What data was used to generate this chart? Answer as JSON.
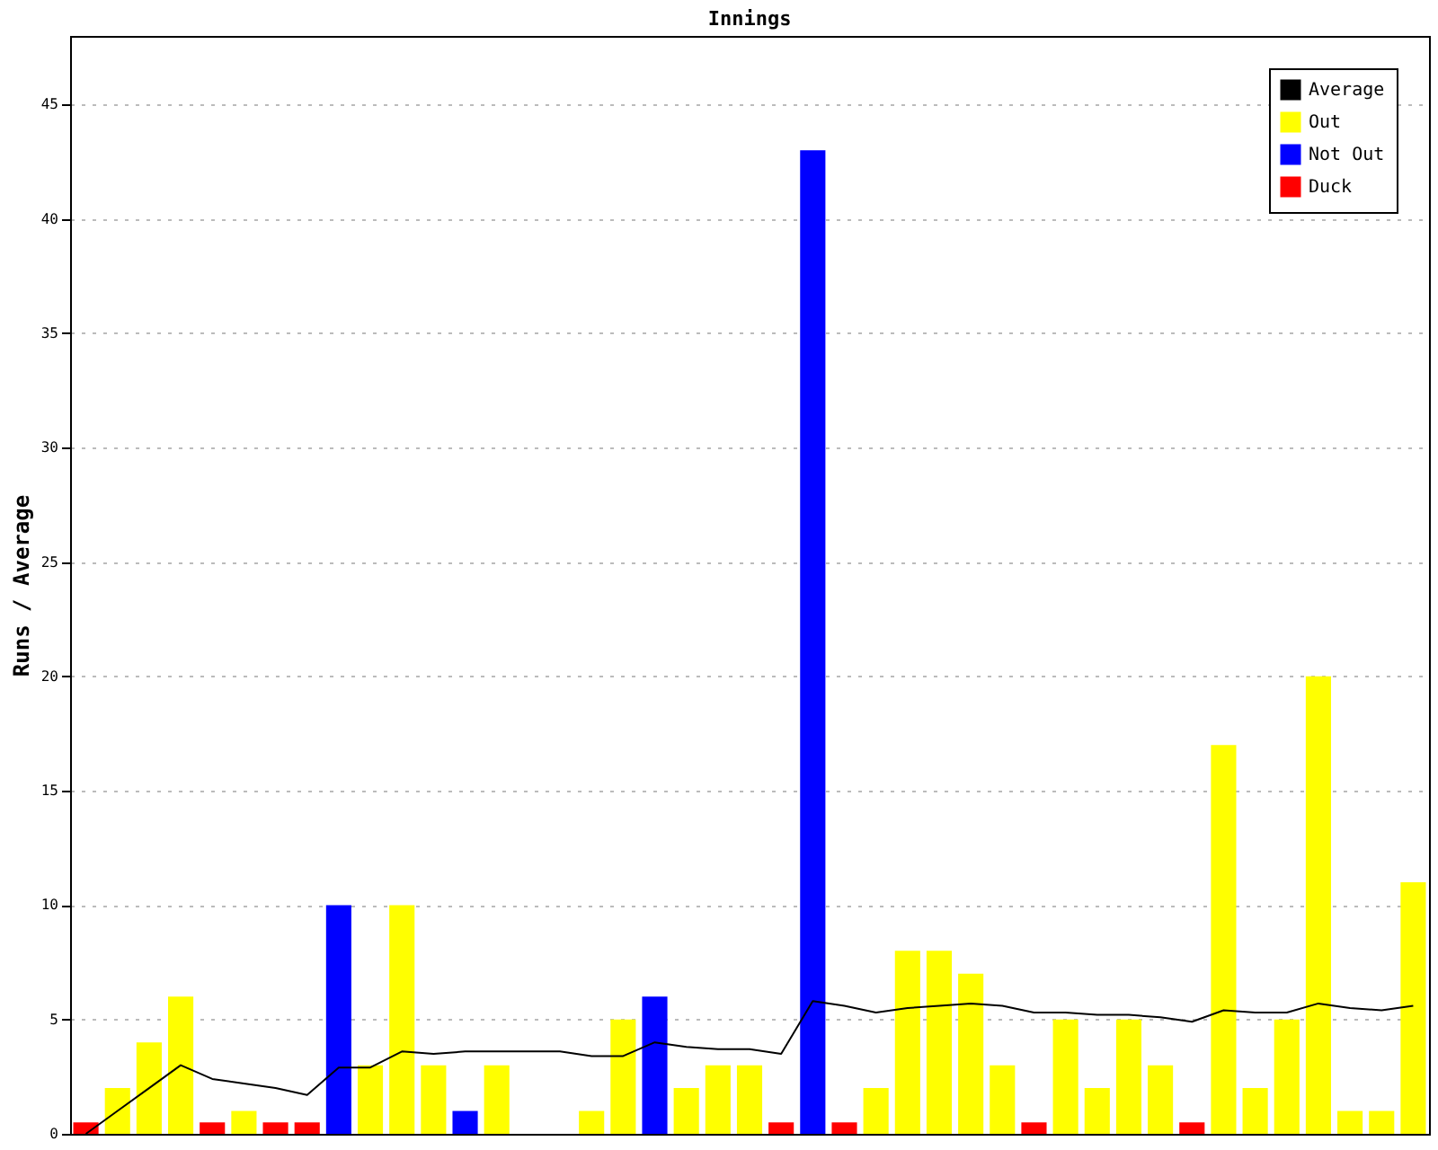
{
  "chart_data": {
    "type": "bar",
    "title": "Innings",
    "ylabel": "Runs / Average",
    "categories": [
      null,
      null,
      null,
      null,
      null,
      null,
      null,
      null,
      null,
      null,
      null,
      null,
      null,
      null,
      null,
      null,
      null,
      null,
      null,
      null,
      null,
      null,
      null,
      null,
      null,
      null,
      null,
      null,
      null,
      null,
      null,
      null,
      null,
      null,
      null,
      null,
      null,
      null,
      null,
      null,
      null,
      null,
      null
    ],
    "series": [
      {
        "name": "Average",
        "type": "line",
        "color": "#000000",
        "values": [
          0,
          1.0,
          2.0,
          3.0,
          2.4,
          2.2,
          2.0,
          1.7,
          2.9,
          2.9,
          3.6,
          3.5,
          3.6,
          3.6,
          3.6,
          3.6,
          3.4,
          3.4,
          4.0,
          3.8,
          3.7,
          3.7,
          3.5,
          5.8,
          5.6,
          5.3,
          5.5,
          5.6,
          5.7,
          5.6,
          5.3,
          5.3,
          5.2,
          5.2,
          5.1,
          4.9,
          5.4,
          5.3,
          5.3,
          5.7,
          5.5,
          5.4,
          5.6
        ]
      },
      {
        "name": "Out",
        "color": "#ffff00",
        "values": [
          null,
          2,
          4,
          6,
          null,
          1,
          null,
          null,
          null,
          3,
          10,
          3,
          null,
          3,
          null,
          null,
          1,
          5,
          null,
          2,
          3,
          3,
          null,
          null,
          null,
          2,
          8,
          8,
          7,
          3,
          null,
          5,
          2,
          5,
          3,
          null,
          17,
          2,
          5,
          20,
          1,
          1,
          11
        ]
      },
      {
        "name": "Not Out",
        "color": "#0000ff",
        "values": [
          null,
          null,
          null,
          null,
          null,
          null,
          null,
          null,
          10,
          null,
          null,
          null,
          1,
          null,
          null,
          null,
          null,
          null,
          6,
          null,
          null,
          null,
          null,
          43,
          null,
          null,
          null,
          null,
          null,
          null,
          null,
          null,
          null,
          null,
          null,
          null,
          null,
          null,
          null,
          null,
          null,
          null,
          null
        ]
      },
      {
        "name": "Duck",
        "color": "#ff0000",
        "values": [
          0.5,
          null,
          null,
          null,
          0.5,
          null,
          0.5,
          0.5,
          null,
          null,
          null,
          null,
          null,
          null,
          null,
          null,
          null,
          null,
          null,
          null,
          null,
          null,
          0.5,
          null,
          0.5,
          null,
          null,
          null,
          null,
          null,
          0.5,
          null,
          null,
          null,
          null,
          0.5,
          null,
          null,
          null,
          null,
          null,
          null,
          null
        ]
      }
    ],
    "ylim": [
      0,
      48
    ],
    "yticks": [
      0,
      5,
      10,
      15,
      20,
      25,
      30,
      35,
      40,
      45
    ],
    "grid": "y",
    "legend": "top right"
  }
}
